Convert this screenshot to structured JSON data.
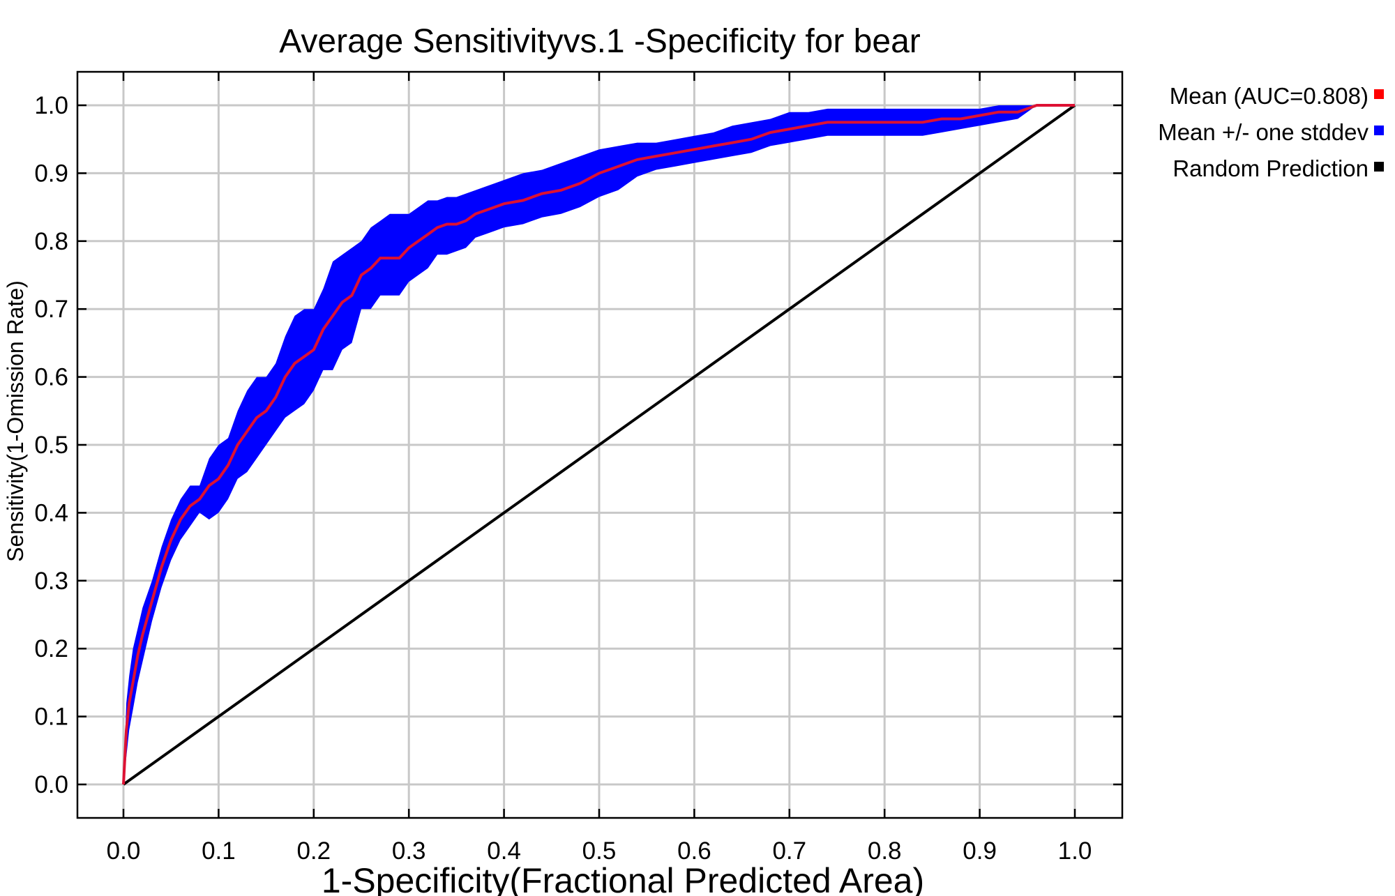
{
  "chart_data": {
    "type": "line",
    "title": "Average Sensitivityvs.1 -Specificity for bear",
    "xlabel": "1-Specificity(Fractional Predicted Area)",
    "ylabel": "Sensitivity(1-Omission Rate)",
    "xlim": [
      0,
      1
    ],
    "ylim": [
      0,
      1
    ],
    "xticks": [
      "0.0",
      "0.1",
      "0.2",
      "0.3",
      "0.4",
      "0.5",
      "0.6",
      "0.7",
      "0.8",
      "0.9",
      "1.0"
    ],
    "yticks": [
      "0.0",
      "0.1",
      "0.2",
      "0.3",
      "0.4",
      "0.5",
      "0.6",
      "0.7",
      "0.8",
      "0.9",
      "1.0"
    ],
    "grid": true,
    "legend_position": "outside-top-right",
    "series": [
      {
        "name": "Mean (AUC=0.808)",
        "color": "#ff0000",
        "x": [
          0,
          0.003,
          0.006,
          0.01,
          0.015,
          0.02,
          0.03,
          0.04,
          0.05,
          0.06,
          0.07,
          0.08,
          0.09,
          0.1,
          0.11,
          0.12,
          0.13,
          0.14,
          0.15,
          0.16,
          0.17,
          0.18,
          0.19,
          0.2,
          0.21,
          0.22,
          0.23,
          0.24,
          0.25,
          0.26,
          0.27,
          0.28,
          0.29,
          0.3,
          0.31,
          0.32,
          0.33,
          0.34,
          0.35,
          0.36,
          0.37,
          0.38,
          0.39,
          0.4,
          0.42,
          0.44,
          0.46,
          0.48,
          0.5,
          0.52,
          0.54,
          0.56,
          0.58,
          0.6,
          0.62,
          0.64,
          0.66,
          0.68,
          0.7,
          0.72,
          0.74,
          0.76,
          0.78,
          0.8,
          0.82,
          0.84,
          0.86,
          0.88,
          0.9,
          0.92,
          0.94,
          0.96,
          0.98,
          1.0
        ],
        "y": [
          0,
          0.08,
          0.12,
          0.15,
          0.19,
          0.22,
          0.27,
          0.32,
          0.36,
          0.39,
          0.41,
          0.42,
          0.44,
          0.45,
          0.47,
          0.5,
          0.52,
          0.54,
          0.55,
          0.57,
          0.6,
          0.62,
          0.63,
          0.64,
          0.67,
          0.69,
          0.71,
          0.72,
          0.75,
          0.76,
          0.775,
          0.775,
          0.775,
          0.79,
          0.8,
          0.81,
          0.82,
          0.825,
          0.825,
          0.83,
          0.84,
          0.845,
          0.85,
          0.855,
          0.86,
          0.87,
          0.875,
          0.885,
          0.9,
          0.91,
          0.92,
          0.925,
          0.93,
          0.935,
          0.94,
          0.945,
          0.95,
          0.96,
          0.965,
          0.97,
          0.975,
          0.975,
          0.975,
          0.975,
          0.975,
          0.975,
          0.98,
          0.98,
          0.985,
          0.99,
          0.99,
          1.0,
          1.0,
          1.0
        ]
      },
      {
        "name": "Mean +/- one stddev",
        "color": "#0000ff",
        "x": [
          0,
          0.003,
          0.006,
          0.01,
          0.015,
          0.02,
          0.03,
          0.04,
          0.05,
          0.06,
          0.07,
          0.08,
          0.09,
          0.1,
          0.11,
          0.12,
          0.13,
          0.14,
          0.15,
          0.16,
          0.17,
          0.18,
          0.19,
          0.2,
          0.21,
          0.22,
          0.23,
          0.24,
          0.25,
          0.26,
          0.27,
          0.28,
          0.29,
          0.3,
          0.31,
          0.32,
          0.33,
          0.34,
          0.35,
          0.36,
          0.37,
          0.38,
          0.39,
          0.4,
          0.42,
          0.44,
          0.46,
          0.48,
          0.5,
          0.52,
          0.54,
          0.56,
          0.58,
          0.6,
          0.62,
          0.64,
          0.66,
          0.68,
          0.7,
          0.72,
          0.74,
          0.76,
          0.78,
          0.8,
          0.82,
          0.84,
          0.86,
          0.88,
          0.9,
          0.92,
          0.94,
          0.96,
          0.98,
          1.0
        ],
        "y_upper": [
          0,
          0.12,
          0.16,
          0.2,
          0.23,
          0.26,
          0.3,
          0.35,
          0.39,
          0.42,
          0.44,
          0.44,
          0.48,
          0.5,
          0.51,
          0.55,
          0.58,
          0.6,
          0.6,
          0.62,
          0.66,
          0.69,
          0.7,
          0.7,
          0.73,
          0.77,
          0.78,
          0.79,
          0.8,
          0.82,
          0.83,
          0.84,
          0.84,
          0.84,
          0.85,
          0.86,
          0.86,
          0.865,
          0.865,
          0.87,
          0.875,
          0.88,
          0.885,
          0.89,
          0.9,
          0.905,
          0.915,
          0.925,
          0.935,
          0.94,
          0.945,
          0.945,
          0.95,
          0.955,
          0.96,
          0.97,
          0.975,
          0.98,
          0.99,
          0.99,
          0.995,
          0.995,
          0.995,
          0.995,
          0.995,
          0.995,
          0.995,
          0.995,
          0.995,
          1.0,
          1.0,
          1.0,
          1.0,
          1.0
        ],
        "y_lower": [
          0,
          0.04,
          0.08,
          0.11,
          0.15,
          0.18,
          0.24,
          0.29,
          0.33,
          0.36,
          0.38,
          0.4,
          0.39,
          0.4,
          0.42,
          0.45,
          0.46,
          0.48,
          0.5,
          0.52,
          0.54,
          0.55,
          0.56,
          0.58,
          0.61,
          0.61,
          0.64,
          0.65,
          0.7,
          0.7,
          0.72,
          0.72,
          0.72,
          0.74,
          0.75,
          0.76,
          0.78,
          0.78,
          0.785,
          0.79,
          0.805,
          0.81,
          0.815,
          0.82,
          0.825,
          0.835,
          0.84,
          0.85,
          0.865,
          0.875,
          0.895,
          0.905,
          0.91,
          0.915,
          0.92,
          0.925,
          0.93,
          0.94,
          0.945,
          0.95,
          0.955,
          0.955,
          0.955,
          0.955,
          0.955,
          0.955,
          0.96,
          0.965,
          0.97,
          0.975,
          0.98,
          1.0,
          1.0,
          1.0
        ]
      },
      {
        "name": "Random Prediction",
        "color": "#000000",
        "x": [
          0,
          1
        ],
        "y": [
          0,
          1
        ]
      }
    ]
  }
}
